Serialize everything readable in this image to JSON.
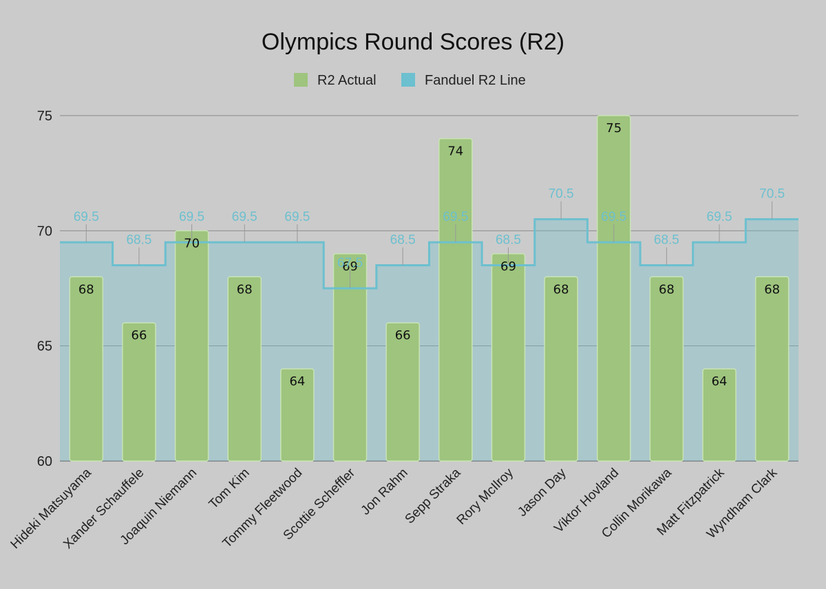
{
  "chart_data": {
    "type": "bar",
    "title": "Olympics Round Scores (R2)",
    "xlabel": "",
    "ylabel": "",
    "ylim": [
      60,
      75
    ],
    "yticks": [
      60,
      65,
      70,
      75
    ],
    "grid": true,
    "legend": "top-center",
    "categories": [
      "Hideki Matsuyama",
      "Xander Schauffele",
      "Joaquin Niemann",
      "Tom Kim",
      "Tommy Fleetwood",
      "Scottie Scheffler",
      "Jon Rahm",
      "Sepp Straka",
      "Rory McIlroy",
      "Jason Day",
      "Viktor Hovland",
      "Collin Morikawa",
      "Matt Fitzpatrick",
      "Wyndham Clark"
    ],
    "series": [
      {
        "name": "R2 Actual",
        "kind": "bar",
        "color": "#9ec47e",
        "values": [
          68,
          66,
          70,
          68,
          64,
          69,
          66,
          74,
          69,
          68,
          75,
          68,
          64,
          68
        ]
      },
      {
        "name": "Fanduel R2 Line",
        "kind": "stepped-area",
        "color": "#6cc0cf",
        "values": [
          69.5,
          68.5,
          69.5,
          69.5,
          69.5,
          67.5,
          68.5,
          69.5,
          68.5,
          70.5,
          69.5,
          68.5,
          69.5,
          70.5
        ]
      }
    ]
  }
}
